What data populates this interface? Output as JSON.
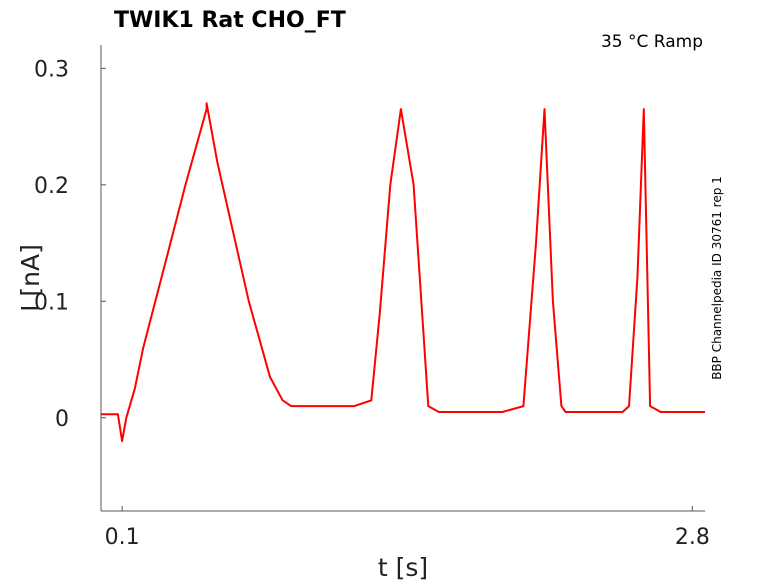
{
  "chart_data": {
    "type": "line",
    "title": "TWIK1  Rat  CHO_FT",
    "annotation": "35 °C  Ramp",
    "side_label": "BBP Channelpedia ID 30761 rep 1",
    "xlabel": "t [s]",
    "ylabel": "I [nA]",
    "xlim": [
      0.0,
      2.86
    ],
    "ylim": [
      -0.08,
      0.32
    ],
    "x_ticks": [
      0.1,
      2.8
    ],
    "x_tick_labels": [
      "0.1",
      "2.8"
    ],
    "y_ticks": [
      0,
      0.1,
      0.2,
      0.3
    ],
    "y_tick_labels": [
      "0",
      "0.1",
      "0.2",
      "0.3"
    ],
    "grid": false,
    "series": [
      {
        "color": "#ff0000",
        "x": [
          0.0,
          0.08,
          0.1,
          0.12,
          0.16,
          0.2,
          0.3,
          0.4,
          0.5,
          0.5,
          0.55,
          0.6,
          0.7,
          0.8,
          0.86,
          0.9,
          1.0,
          1.1,
          1.2,
          1.28,
          1.32,
          1.37,
          1.42,
          1.48,
          1.55,
          1.6,
          1.7,
          1.8,
          1.9,
          2.0,
          2.06,
          2.1,
          2.14,
          2.18,
          2.2,
          2.3,
          2.4,
          2.47,
          2.5,
          2.54,
          2.57,
          2.6,
          2.65,
          2.7,
          2.75,
          2.8,
          2.86
        ],
        "y": [
          0.003,
          0.003,
          -0.02,
          0.0,
          0.025,
          0.06,
          0.13,
          0.2,
          0.265,
          0.27,
          0.22,
          0.18,
          0.1,
          0.035,
          0.015,
          0.01,
          0.01,
          0.01,
          0.01,
          0.015,
          0.09,
          0.2,
          0.265,
          0.2,
          0.01,
          0.005,
          0.005,
          0.005,
          0.005,
          0.01,
          0.15,
          0.265,
          0.1,
          0.01,
          0.005,
          0.005,
          0.005,
          0.005,
          0.01,
          0.12,
          0.265,
          0.01,
          0.005,
          0.005,
          0.005,
          0.005,
          0.005
        ]
      }
    ]
  }
}
